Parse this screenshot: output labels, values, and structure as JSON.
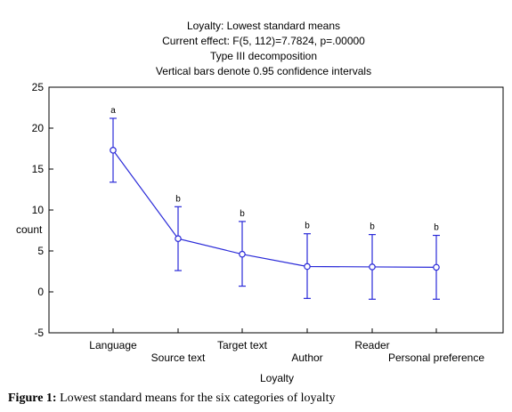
{
  "chart_data": {
    "type": "line",
    "title_lines": [
      "Loyalty: Lowest standard means",
      "Current effect: F(5, 112)=7.7824, p=.00000",
      "Type III decomposition",
      "Vertical bars denote 0.95 confidence intervals"
    ],
    "xlabel": "Loyalty",
    "ylabel": "count",
    "ylim": [
      -5,
      25
    ],
    "yticks": [
      -5,
      0,
      5,
      10,
      15,
      20,
      25
    ],
    "categories": [
      "Language",
      "Source text",
      "Target text",
      "Author",
      "Reader",
      "Personal preference"
    ],
    "values": [
      17.3,
      6.5,
      4.6,
      3.1,
      3.05,
      3.0
    ],
    "ci_low": [
      13.4,
      2.6,
      0.7,
      -0.8,
      -0.9,
      -0.9
    ],
    "ci_high": [
      21.2,
      10.4,
      8.6,
      7.1,
      7.0,
      6.9
    ],
    "significance_letters": [
      "a",
      "b",
      "b",
      "b",
      "b",
      "b"
    ],
    "grid": false,
    "series_color": "#2a2ad8"
  },
  "caption": {
    "label": "Figure 1:",
    "text": " Lowest standard means for the six categories of loyalty"
  }
}
